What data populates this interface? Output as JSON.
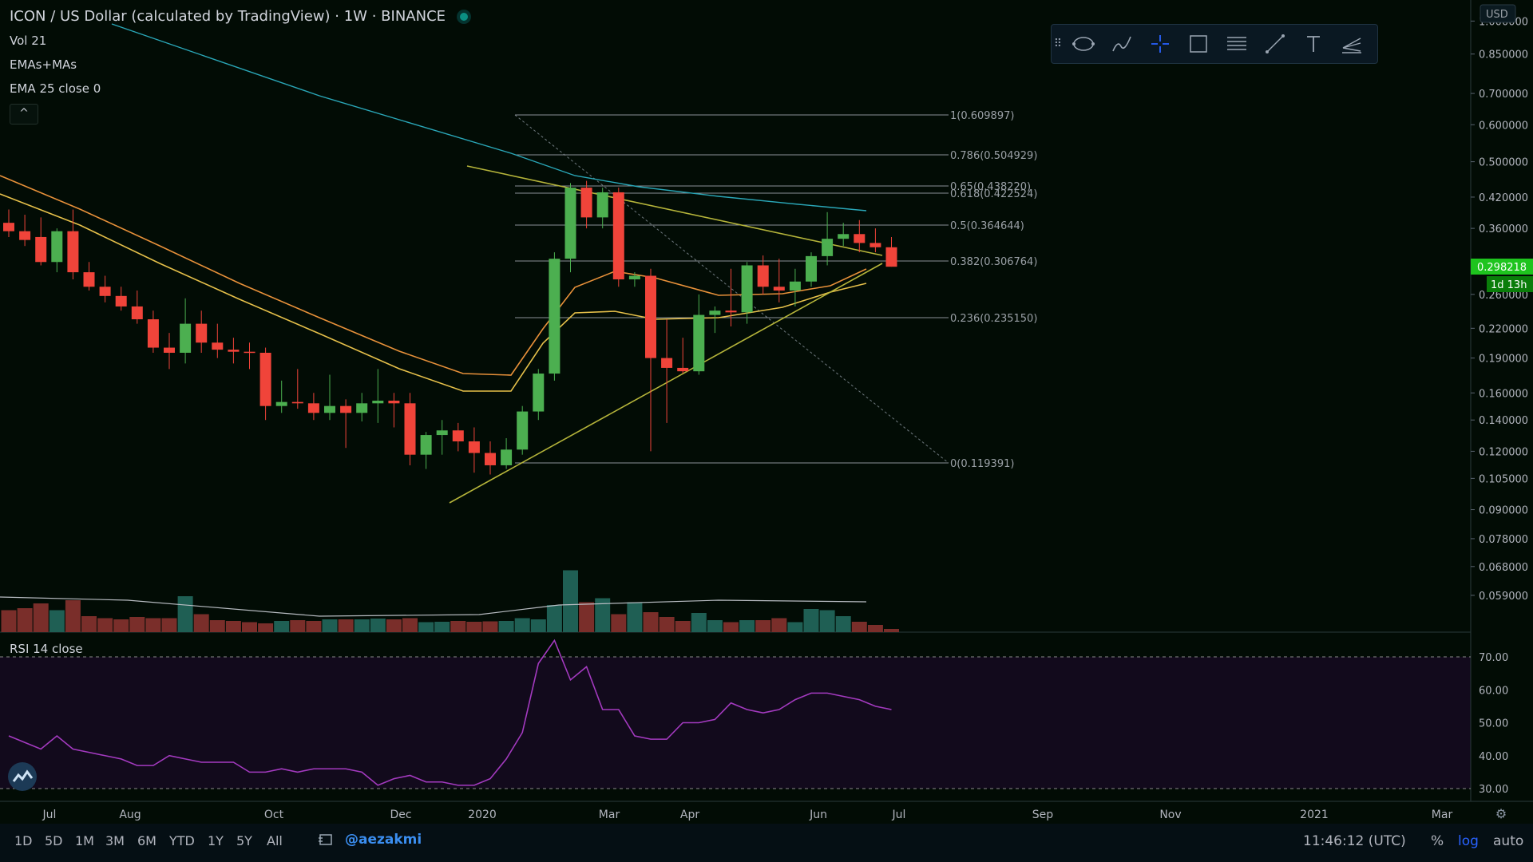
{
  "header": {
    "symbol": "ICON / US Dollar (calculated by TradingView)",
    "interval": "1W",
    "exchange": "BINANCE",
    "sep": "·"
  },
  "legend": {
    "volume": "Vol 21",
    "ema_ma": "EMAs+MAs",
    "ema25": "EMA 25 close 0",
    "rsi": "RSI 14 close",
    "collapse": "^"
  },
  "toolbar": {
    "icons": [
      "ellipse-tool-icon",
      "brush-tool-icon",
      "crosshair-icon",
      "rectangle-tool-icon",
      "fib-retracement-icon",
      "trend-line-icon",
      "text-tool-icon",
      "pitchfork-icon"
    ]
  },
  "price_axis": {
    "currency": "USD",
    "ticks": [
      "1.000000",
      "0.850000",
      "0.700000",
      "0.600000",
      "0.500000",
      "0.420000",
      "0.360000",
      "0.300000",
      "0.260000",
      "0.220000",
      "0.190000",
      "0.160000",
      "0.140000",
      "0.120000",
      "0.105000",
      "0.090000",
      "0.078000",
      "0.068000",
      "0.059000"
    ],
    "last_price": "0.298218",
    "countdown": "1d 13h"
  },
  "rsi_axis": {
    "ticks": [
      "70.00",
      "60.00",
      "50.00",
      "40.00",
      "30.00"
    ]
  },
  "time_axis": {
    "ticks": [
      "Jul",
      "Aug",
      "Oct",
      "Dec",
      "2020",
      "Mar",
      "Apr",
      "Jun",
      "Jul",
      "Sep",
      "Nov",
      "2021",
      "Mar"
    ]
  },
  "fib_levels": [
    {
      "ratio": "1",
      "price": "0.609897"
    },
    {
      "ratio": "0.786",
      "price": "0.504929"
    },
    {
      "ratio": "0.65",
      "price": "0.438220"
    },
    {
      "ratio": "0.618",
      "price": "0.422524"
    },
    {
      "ratio": "0.5",
      "price": "0.364644"
    },
    {
      "ratio": "0.382",
      "price": "0.306764"
    },
    {
      "ratio": "0.236",
      "price": "0.235150"
    },
    {
      "ratio": "0",
      "price": "0.119391"
    }
  ],
  "bottom_bar": {
    "timeframes": [
      "1D",
      "5D",
      "1M",
      "3M",
      "6M",
      "YTD",
      "1Y",
      "5Y",
      "All"
    ],
    "handle": "@aezakmi",
    "clock": "11:46:12 (UTC)",
    "percent": "%",
    "log": "log",
    "auto": "auto"
  },
  "colors": {
    "background": "#020c05",
    "up": "#4caf50",
    "down": "#f0443a",
    "ema_orange": "#e8913a",
    "ema_yellow": "#e6c04a",
    "ma_teal": "#2aa7b8",
    "trend": "#b5b43a",
    "rsi": "#a43ac0",
    "rsi_band": "#120a1c",
    "last_price_bg": "#1ec41e",
    "accent_blue": "#2962ff"
  },
  "chart_data": {
    "type": "candlestick",
    "scale": "log",
    "interval": "1W",
    "ohlc": [
      [
        0.37,
        0.395,
        0.345,
        0.355
      ],
      [
        0.355,
        0.385,
        0.33,
        0.34
      ],
      [
        0.345,
        0.38,
        0.3,
        0.305
      ],
      [
        0.305,
        0.36,
        0.29,
        0.355
      ],
      [
        0.355,
        0.395,
        0.28,
        0.29
      ],
      [
        0.29,
        0.305,
        0.265,
        0.27
      ],
      [
        0.27,
        0.285,
        0.25,
        0.258
      ],
      [
        0.258,
        0.27,
        0.24,
        0.245
      ],
      [
        0.245,
        0.265,
        0.225,
        0.23
      ],
      [
        0.23,
        0.24,
        0.195,
        0.2
      ],
      [
        0.2,
        0.215,
        0.18,
        0.195
      ],
      [
        0.195,
        0.255,
        0.185,
        0.225
      ],
      [
        0.225,
        0.24,
        0.195,
        0.205
      ],
      [
        0.205,
        0.225,
        0.19,
        0.198
      ],
      [
        0.198,
        0.21,
        0.185,
        0.196
      ],
      [
        0.196,
        0.205,
        0.18,
        0.195
      ],
      [
        0.195,
        0.2,
        0.14,
        0.15
      ],
      [
        0.15,
        0.17,
        0.145,
        0.153
      ],
      [
        0.153,
        0.18,
        0.148,
        0.152
      ],
      [
        0.152,
        0.16,
        0.14,
        0.145
      ],
      [
        0.145,
        0.175,
        0.14,
        0.15
      ],
      [
        0.15,
        0.155,
        0.122,
        0.145
      ],
      [
        0.145,
        0.16,
        0.139,
        0.152
      ],
      [
        0.152,
        0.18,
        0.138,
        0.154
      ],
      [
        0.154,
        0.16,
        0.135,
        0.152
      ],
      [
        0.152,
        0.16,
        0.112,
        0.118
      ],
      [
        0.118,
        0.132,
        0.11,
        0.13
      ],
      [
        0.13,
        0.14,
        0.118,
        0.133
      ],
      [
        0.133,
        0.138,
        0.12,
        0.126
      ],
      [
        0.126,
        0.135,
        0.108,
        0.119
      ],
      [
        0.119,
        0.126,
        0.107,
        0.112
      ],
      [
        0.112,
        0.128,
        0.11,
        0.121
      ],
      [
        0.121,
        0.15,
        0.118,
        0.146
      ],
      [
        0.146,
        0.18,
        0.14,
        0.176
      ],
      [
        0.176,
        0.32,
        0.17,
        0.31
      ],
      [
        0.31,
        0.45,
        0.29,
        0.44
      ],
      [
        0.44,
        0.455,
        0.36,
        0.38
      ],
      [
        0.38,
        0.44,
        0.36,
        0.43
      ],
      [
        0.43,
        0.44,
        0.27,
        0.28
      ],
      [
        0.28,
        0.29,
        0.27,
        0.285
      ],
      [
        0.285,
        0.295,
        0.12,
        0.19
      ],
      [
        0.19,
        0.23,
        0.138,
        0.181
      ],
      [
        0.181,
        0.21,
        0.176,
        0.178
      ],
      [
        0.178,
        0.26,
        0.175,
        0.235
      ],
      [
        0.235,
        0.245,
        0.215,
        0.24
      ],
      [
        0.24,
        0.295,
        0.222,
        0.238
      ],
      [
        0.238,
        0.305,
        0.225,
        0.3
      ],
      [
        0.3,
        0.315,
        0.26,
        0.27
      ],
      [
        0.27,
        0.31,
        0.25,
        0.265
      ],
      [
        0.265,
        0.295,
        0.245,
        0.277
      ],
      [
        0.277,
        0.32,
        0.27,
        0.314
      ],
      [
        0.314,
        0.39,
        0.3,
        0.342
      ],
      [
        0.342,
        0.37,
        0.33,
        0.35
      ],
      [
        0.35,
        0.375,
        0.32,
        0.335
      ],
      [
        0.335,
        0.36,
        0.32,
        0.328
      ],
      [
        0.328,
        0.345,
        0.298,
        0.298
      ]
    ],
    "volume_relative": [
      0.55,
      0.6,
      0.72,
      0.55,
      0.8,
      0.4,
      0.35,
      0.32,
      0.38,
      0.35,
      0.35,
      0.9,
      0.45,
      0.3,
      0.28,
      0.25,
      0.22,
      0.28,
      0.3,
      0.28,
      0.32,
      0.32,
      0.32,
      0.34,
      0.32,
      0.35,
      0.25,
      0.26,
      0.28,
      0.26,
      0.27,
      0.28,
      0.35,
      0.32,
      0.68,
      1.55,
      0.75,
      0.85,
      0.45,
      0.75,
      0.5,
      0.38,
      0.28,
      0.48,
      0.3,
      0.25,
      0.3,
      0.3,
      0.35,
      0.25,
      0.58,
      0.55,
      0.4,
      0.26,
      0.18,
      0.08
    ],
    "rsi": [
      46,
      44,
      42,
      46,
      42,
      41,
      40,
      39,
      37,
      37,
      40,
      39,
      38,
      38,
      38,
      35,
      35,
      36,
      35,
      36,
      36,
      36,
      35,
      31,
      33,
      34,
      32,
      32,
      31,
      31,
      33,
      39,
      47,
      68,
      75,
      63,
      67,
      54,
      54,
      46,
      45,
      45,
      50,
      50,
      51,
      56,
      54,
      53,
      54,
      57,
      59,
      59,
      58,
      57,
      55,
      54
    ],
    "rsi_range": [
      30,
      70
    ],
    "price_range": [
      0.052,
      1.0
    ]
  }
}
